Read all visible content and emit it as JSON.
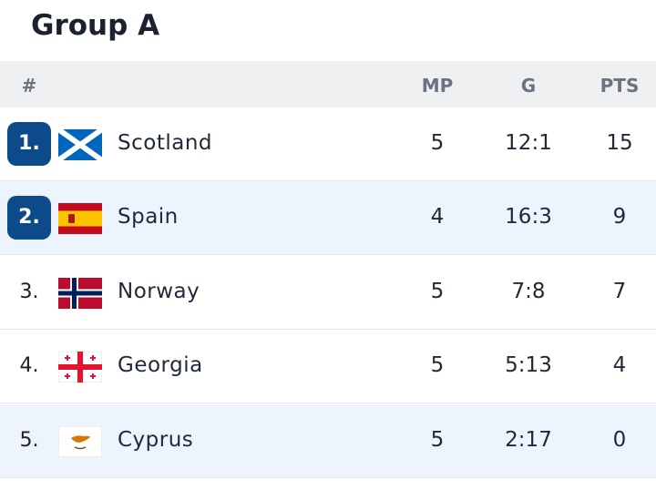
{
  "header": {
    "title": "Group A"
  },
  "table": {
    "columns": [
      "#",
      "MP",
      "G",
      "PTS"
    ],
    "rows": [
      {
        "rank": "1.",
        "team": "Scotland",
        "mp": 5,
        "g": "12:1",
        "pts": 15
      },
      {
        "rank": "2.",
        "team": "Spain",
        "mp": 4,
        "g": "16:3",
        "pts": 9
      },
      {
        "rank": "3.",
        "team": "Norway",
        "mp": 5,
        "g": "7:8",
        "pts": 7
      },
      {
        "rank": "4.",
        "team": "Georgia",
        "mp": 5,
        "g": "5:13",
        "pts": 4
      },
      {
        "rank": "5.",
        "team": "Cyprus",
        "mp": 5,
        "g": "2:17",
        "pts": 0
      }
    ]
  }
}
